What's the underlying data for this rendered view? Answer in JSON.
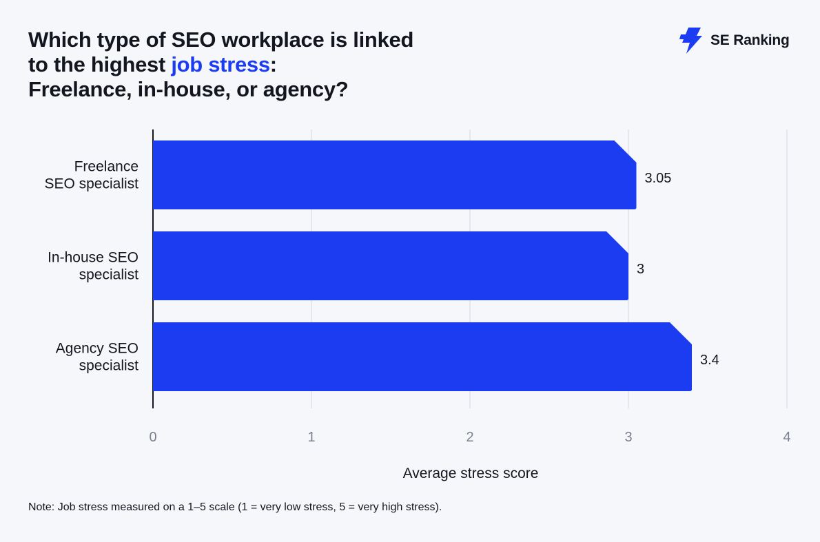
{
  "header": {
    "title_line1": "Which type of SEO workplace is linked",
    "title_line2_prefix": "to the highest ",
    "title_line2_highlight": "job stress",
    "title_line2_suffix": ":",
    "title_line3": "Freelance, in-house, or agency?"
  },
  "brand": {
    "name": "SE Ranking",
    "logo_icon": "lightning-icon"
  },
  "colors": {
    "bar": "#1c3cf2",
    "accent": "#1c3cf2",
    "grid": "#dfe2ec",
    "axis": "#14161f",
    "tick": "#7a7f8e"
  },
  "chart_data": {
    "type": "bar",
    "orientation": "horizontal",
    "categories": [
      [
        "Freelance",
        "SEO specialist"
      ],
      [
        "In-house SEO",
        "specialist"
      ],
      [
        "Agency SEO",
        "specialist"
      ]
    ],
    "values": [
      3.05,
      3,
      3.4
    ],
    "value_labels": [
      "3.05",
      "3",
      "3.4"
    ],
    "xlabel": "Average stress score",
    "xlim": [
      0,
      4
    ],
    "xticks": [
      0,
      1,
      2,
      3,
      4
    ],
    "grid": true
  },
  "note": "Note: Job stress measured on a 1–5 scale (1 = very low stress, 5 = very high stress)."
}
